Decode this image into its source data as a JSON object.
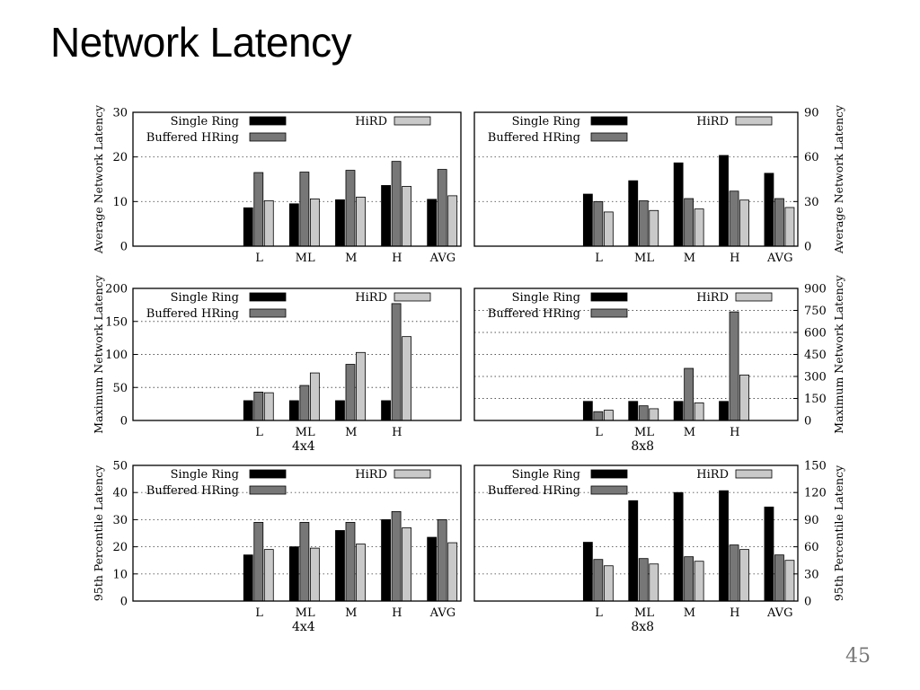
{
  "slide": {
    "title": "Network Latency",
    "page_number": "45"
  },
  "colors": {
    "single_ring": "#000000",
    "buffered_hring": "#777777",
    "hird": "#c9c9c9",
    "frame": "#000000",
    "grid": "#555555"
  },
  "chart_data": [
    {
      "type": "bar",
      "row": 0,
      "col": 0,
      "categories": [
        "L",
        "ML",
        "M",
        "H",
        "AVG"
      ],
      "ylabel": "Average Network Latency",
      "ylabel_side": "left",
      "ylim": [
        0,
        30
      ],
      "yticks": [
        0,
        10,
        20,
        30
      ],
      "xlabel": "",
      "grid": true,
      "legend_placement": "top",
      "series": [
        {
          "name": "Single Ring",
          "values": [
            8.6,
            9.5,
            10.4,
            13.6,
            10.5
          ]
        },
        {
          "name": "Buffered HRing",
          "values": [
            16.5,
            16.6,
            17.0,
            19.0,
            17.2
          ]
        },
        {
          "name": "HiRD",
          "values": [
            10.2,
            10.6,
            11.0,
            13.4,
            11.3
          ]
        }
      ]
    },
    {
      "type": "bar",
      "row": 0,
      "col": 1,
      "categories": [
        "L",
        "ML",
        "M",
        "H",
        "AVG"
      ],
      "ylabel": "Average Network Latency",
      "ylabel_side": "right",
      "ylim": [
        0,
        90
      ],
      "yticks": [
        0,
        30,
        60,
        90
      ],
      "xlabel": "",
      "grid": true,
      "legend_placement": "top",
      "series": [
        {
          "name": "Single Ring",
          "values": [
            35,
            44,
            56,
            61,
            49
          ]
        },
        {
          "name": "Buffered HRing",
          "values": [
            30,
            30.5,
            32,
            37,
            32
          ]
        },
        {
          "name": "HiRD",
          "values": [
            23,
            24,
            25,
            31,
            26
          ]
        }
      ]
    },
    {
      "type": "bar",
      "row": 1,
      "col": 0,
      "categories": [
        "L",
        "ML",
        "M",
        "H"
      ],
      "ylabel": "Maximum Network Latency",
      "ylabel_side": "left",
      "ylim": [
        0,
        200
      ],
      "yticks": [
        0,
        50,
        100,
        150,
        200
      ],
      "xlabel": "4x4",
      "grid": true,
      "legend_placement": "top",
      "series": [
        {
          "name": "Single Ring",
          "values": [
            30,
            30,
            30,
            30
          ]
        },
        {
          "name": "Buffered HRing",
          "values": [
            43,
            53,
            85,
            177
          ]
        },
        {
          "name": "HiRD",
          "values": [
            42,
            72,
            103,
            127
          ]
        }
      ]
    },
    {
      "type": "bar",
      "row": 1,
      "col": 1,
      "categories": [
        "L",
        "ML",
        "M",
        "H"
      ],
      "ylabel": "Maximum Network Latency",
      "ylabel_side": "right",
      "ylim": [
        0,
        900
      ],
      "yticks": [
        0,
        150,
        300,
        450,
        600,
        750,
        900
      ],
      "xlabel": "8x8",
      "grid": true,
      "legend_placement": "top",
      "series": [
        {
          "name": "Single Ring",
          "values": [
            130,
            130,
            130,
            130
          ]
        },
        {
          "name": "Buffered HRing",
          "values": [
            60,
            100,
            355,
            740
          ]
        },
        {
          "name": "HiRD",
          "values": [
            70,
            80,
            120,
            310
          ]
        }
      ]
    },
    {
      "type": "bar",
      "row": 2,
      "col": 0,
      "categories": [
        "L",
        "ML",
        "M",
        "H",
        "AVG"
      ],
      "ylabel": "95th Percentile Latency",
      "ylabel_side": "left",
      "ylim": [
        0,
        50
      ],
      "yticks": [
        0,
        10,
        20,
        30,
        40,
        50
      ],
      "xlabel": "4x4",
      "grid": true,
      "legend_placement": "top",
      "series": [
        {
          "name": "Single Ring",
          "values": [
            17,
            20,
            26,
            30,
            23.5
          ]
        },
        {
          "name": "Buffered HRing",
          "values": [
            29,
            29,
            29,
            33,
            30
          ]
        },
        {
          "name": "HiRD",
          "values": [
            19,
            19.5,
            21,
            27,
            21.5
          ]
        }
      ]
    },
    {
      "type": "bar",
      "row": 2,
      "col": 1,
      "categories": [
        "L",
        "ML",
        "M",
        "H",
        "AVG"
      ],
      "ylabel": "95th Percentile Latency",
      "ylabel_side": "right",
      "ylim": [
        0,
        150
      ],
      "yticks": [
        0,
        30,
        60,
        90,
        120,
        150
      ],
      "xlabel": "8x8",
      "grid": true,
      "legend_placement": "top",
      "series": [
        {
          "name": "Single Ring",
          "values": [
            65,
            111,
            120,
            122,
            104
          ]
        },
        {
          "name": "Buffered HRing",
          "values": [
            46,
            47,
            49,
            62,
            51
          ]
        },
        {
          "name": "HiRD",
          "values": [
            39,
            41,
            44,
            57,
            45
          ]
        }
      ]
    }
  ]
}
